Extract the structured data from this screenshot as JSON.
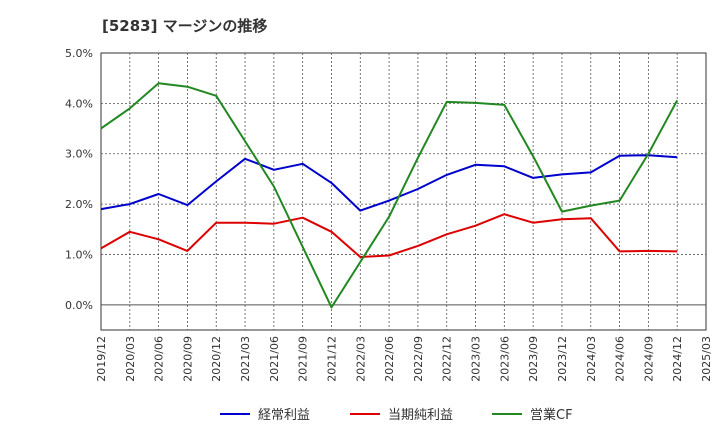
{
  "chart_data": {
    "type": "line",
    "title": "[5283]  マージンの推移",
    "xlabel": "",
    "ylabel": "",
    "x": [
      "2019/12",
      "2020/03",
      "2020/06",
      "2020/09",
      "2020/12",
      "2021/03",
      "2021/06",
      "2021/09",
      "2021/12",
      "2022/03",
      "2022/06",
      "2022/09",
      "2022/12",
      "2023/03",
      "2023/06",
      "2023/09",
      "2023/12",
      "2024/03",
      "2024/06",
      "2024/09",
      "2024/12"
    ],
    "x_ticks": [
      "2019/12",
      "2020/03",
      "2020/06",
      "2020/09",
      "2020/12",
      "2021/03",
      "2021/06",
      "2021/09",
      "2021/12",
      "2022/03",
      "2022/06",
      "2022/09",
      "2022/12",
      "2023/03",
      "2023/06",
      "2023/09",
      "2023/12",
      "2024/03",
      "2024/06",
      "2024/09",
      "2024/12",
      "2025/03"
    ],
    "y_ticks": [
      0,
      1,
      2,
      3,
      4,
      5
    ],
    "y_tick_labels": [
      "0.0%",
      "1.0%",
      "2.0%",
      "3.0%",
      "4.0%",
      "5.0%"
    ],
    "ylim": [
      -0.5,
      5.0
    ],
    "grid": true,
    "legend_position": "bottom",
    "series": [
      {
        "name": "経常利益",
        "color": "#0000cc",
        "values": [
          1.9,
          2.0,
          2.2,
          1.98,
          2.45,
          2.9,
          2.68,
          2.8,
          2.42,
          1.87,
          2.07,
          2.3,
          2.58,
          2.78,
          2.75,
          2.52,
          2.59,
          2.63,
          2.96,
          2.97,
          2.93
        ]
      },
      {
        "name": "当期純利益",
        "color": "#dd0000",
        "values": [
          1.12,
          1.45,
          1.3,
          1.07,
          1.63,
          1.63,
          1.61,
          1.73,
          1.45,
          0.95,
          0.98,
          1.17,
          1.4,
          1.57,
          1.8,
          1.63,
          1.7,
          1.72,
          1.06,
          1.07,
          1.06
        ]
      },
      {
        "name": "営業CF",
        "color": "#228822",
        "values": [
          3.5,
          3.9,
          4.4,
          4.33,
          4.15,
          3.25,
          2.35,
          1.15,
          -0.05,
          0.85,
          1.75,
          2.92,
          4.03,
          4.01,
          3.97,
          2.95,
          1.85,
          1.97,
          2.07,
          3.0,
          4.06
        ]
      }
    ]
  }
}
